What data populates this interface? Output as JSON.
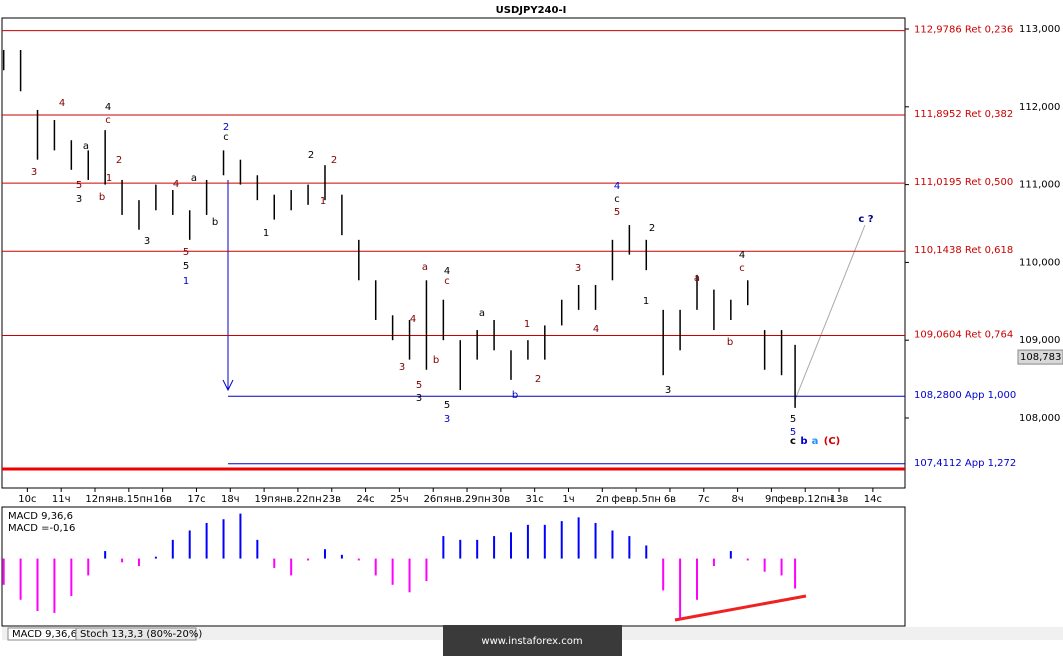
{
  "chart_data": [
    {
      "type": "hl_bar",
      "title": "USDJPY240-I",
      "x": [
        -0.7,
        -0.2,
        0.3,
        0.8,
        1.3,
        1.8,
        2.3,
        2.8,
        3.3,
        3.8,
        4.3,
        4.8,
        5.3,
        5.8,
        6.3,
        6.8,
        7.3,
        7.8,
        8.3,
        8.8,
        9.3,
        9.8,
        10.3,
        10.8,
        11.3,
        11.8,
        12.3,
        12.8,
        13.3,
        13.8,
        14.3,
        14.8,
        15.3,
        15.8,
        16.3,
        16.8,
        17.3,
        17.8,
        18.3,
        18.8,
        19.3,
        19.8,
        20.3,
        20.8,
        21.3,
        21.8,
        22.3,
        22.7
      ],
      "high": [
        112.73,
        112.73,
        111.96,
        111.83,
        111.57,
        111.44,
        111.7,
        111.06,
        110.8,
        111.0,
        110.93,
        110.67,
        111.06,
        111.44,
        111.32,
        111.12,
        110.87,
        110.93,
        111.0,
        111.25,
        110.87,
        110.29,
        109.77,
        109.32,
        109.26,
        109.77,
        109.52,
        109.0,
        109.13,
        109.26,
        108.87,
        109.0,
        109.19,
        109.52,
        109.71,
        109.71,
        110.29,
        110.48,
        110.29,
        109.39,
        109.39,
        109.84,
        109.65,
        109.52,
        109.77,
        109.13,
        109.13,
        108.94
      ],
      "low": [
        112.47,
        112.2,
        111.32,
        111.44,
        111.19,
        111.06,
        111.0,
        110.61,
        110.42,
        110.67,
        110.61,
        110.29,
        110.61,
        111.12,
        111.0,
        110.8,
        110.55,
        110.67,
        110.74,
        110.8,
        110.35,
        109.77,
        109.26,
        109.0,
        108.75,
        108.62,
        109.0,
        108.36,
        108.75,
        108.87,
        108.49,
        108.75,
        108.75,
        109.19,
        109.39,
        109.39,
        109.77,
        110.1,
        109.9,
        108.55,
        108.87,
        109.39,
        109.13,
        109.26,
        109.45,
        108.62,
        108.55,
        108.13
      ],
      "color": "#000000",
      "xlim": [
        -0.75,
        25.95
      ],
      "xticks": [
        {
          "value": 0,
          "label": "10с"
        },
        {
          "value": 1,
          "label": "11ч"
        },
        {
          "value": 2,
          "label": "12п"
        },
        {
          "value": 3,
          "label": "янв.15пн"
        },
        {
          "value": 4,
          "label": "16в"
        },
        {
          "value": 5,
          "label": "17с"
        },
        {
          "value": 6,
          "label": "18ч"
        },
        {
          "value": 7,
          "label": "19п"
        },
        {
          "value": 8,
          "label": "янв.22пн"
        },
        {
          "value": 9,
          "label": "23в"
        },
        {
          "value": 10,
          "label": "24с"
        },
        {
          "value": 11,
          "label": "25ч"
        },
        {
          "value": 12,
          "label": "26п"
        },
        {
          "value": 13,
          "label": "янв.29пн"
        },
        {
          "value": 14,
          "label": "30в"
        },
        {
          "value": 15,
          "label": "31с"
        },
        {
          "value": 16,
          "label": "1ч"
        },
        {
          "value": 17,
          "label": "2п"
        },
        {
          "value": 18,
          "label": "февр.5пн"
        },
        {
          "value": 19,
          "label": "6в"
        },
        {
          "value": 20,
          "label": "7с"
        },
        {
          "value": 21,
          "label": "8ч"
        },
        {
          "value": 22,
          "label": "9п"
        },
        {
          "value": 23,
          "label": "февр.12пн"
        },
        {
          "value": 24,
          "label": "13в"
        },
        {
          "value": 25,
          "label": "14с"
        }
      ],
      "ylim": [
        107.1,
        113.373
      ],
      "yticks": [
        {
          "value": 108,
          "label": "108,000"
        },
        {
          "value": 109,
          "label": "109,000"
        },
        {
          "value": 110,
          "label": "110,000"
        },
        {
          "value": 111,
          "label": "111,000"
        },
        {
          "value": 112,
          "label": "112,000"
        },
        {
          "value": 113,
          "label": "113,000"
        }
      ],
      "last_price": {
        "value": 108.783,
        "label": "108,783"
      },
      "levels": [
        {
          "value": 112.9786,
          "label": "112,9786 Ret 0,236",
          "color": "#cc0000"
        },
        {
          "value": 111.8952,
          "label": "111,8952 Ret 0,382",
          "color": "#cc0000"
        },
        {
          "value": 111.0195,
          "label": "111,0195 Ret 0,500",
          "color": "#cc0000"
        },
        {
          "value": 110.1438,
          "label": "110,1438 Ret 0,618",
          "color": "#cc0000"
        },
        {
          "value": 109.0604,
          "label": "109,0604 Ret 0,764",
          "color": "#cc0000"
        },
        {
          "value": 108.28,
          "label": "108,2800 App 1,000",
          "color": "#0000cc"
        },
        {
          "value": 107.4112,
          "label": "107,4112 App 1,272",
          "color": "#0000cc"
        }
      ],
      "annotations": [
        {
          "text": "4",
          "color": "#800000"
        },
        {
          "text": "4",
          "color": "#000000"
        },
        {
          "text": "c",
          "color": "#800000"
        },
        {
          "text": "2",
          "color": "#800000"
        },
        {
          "text": "a",
          "color": "#000000"
        },
        {
          "text": "1",
          "color": "#800000"
        },
        {
          "text": "3",
          "color": "#800000"
        },
        {
          "text": "5",
          "color": "#800000"
        },
        {
          "text": "3",
          "color": "#000000"
        },
        {
          "text": "b",
          "color": "#800000"
        },
        {
          "text": "4",
          "color": "#800000"
        },
        {
          "text": "a",
          "color": "#000000"
        },
        {
          "text": "3",
          "color": "#000000"
        },
        {
          "text": "5",
          "color": "#800000"
        },
        {
          "text": "5",
          "color": "#000000"
        },
        {
          "text": "1",
          "color": "#0000cc"
        },
        {
          "text": "b",
          "color": "#000000"
        },
        {
          "text": "2",
          "color": "#0000cc"
        },
        {
          "text": "c",
          "color": "#000000"
        },
        {
          "text": "1",
          "color": "#000000"
        },
        {
          "text": "2",
          "color": "#000000"
        },
        {
          "text": "2",
          "color": "#800000"
        },
        {
          "text": "1",
          "color": "#800000"
        },
        {
          "text": "a",
          "color": "#800000"
        },
        {
          "text": "4",
          "color": "#000000"
        },
        {
          "text": "c",
          "color": "#800000"
        },
        {
          "text": "4",
          "color": "#800000"
        },
        {
          "text": "3",
          "color": "#800000"
        },
        {
          "text": "b",
          "color": "#800000"
        },
        {
          "text": "5",
          "color": "#800000"
        },
        {
          "text": "3",
          "color": "#000000"
        },
        {
          "text": "5",
          "color": "#000000"
        },
        {
          "text": "3",
          "color": "#0000cc"
        },
        {
          "text": "a",
          "color": "#000000"
        },
        {
          "text": "b",
          "color": "#0000cc"
        },
        {
          "text": "1",
          "color": "#800000"
        },
        {
          "text": "2",
          "color": "#800000"
        },
        {
          "text": "3",
          "color": "#800000"
        },
        {
          "text": "4",
          "color": "#800000"
        },
        {
          "text": "4",
          "color": "#0000cc"
        },
        {
          "text": "c",
          "color": "#000000"
        },
        {
          "text": "5",
          "color": "#800000"
        },
        {
          "text": "2",
          "color": "#000000"
        },
        {
          "text": "1",
          "color": "#000000"
        },
        {
          "text": "a",
          "color": "#800000"
        },
        {
          "text": "4",
          "color": "#000000"
        },
        {
          "text": "c",
          "color": "#800000"
        },
        {
          "text": "b",
          "color": "#800000"
        },
        {
          "text": "3",
          "color": "#000000"
        },
        {
          "text": "5",
          "color": "#000000"
        },
        {
          "text": "5",
          "color": "#0000cc"
        },
        {
          "text": "c",
          "color": "#000000"
        },
        {
          "text": "b",
          "color": "#0000cc"
        },
        {
          "text": "a",
          "color": "#1e90ff"
        },
        {
          "text": "(C)",
          "color": "#cc0000"
        },
        {
          "text": "c ?",
          "color": "#000080"
        }
      ]
    },
    {
      "type": "bar",
      "series": [
        {
          "name": "MACD 9,36,6",
          "color": "#0000ff",
          "negative_color": "#ff00ff",
          "x": [
            -0.7,
            -0.2,
            0.3,
            0.8,
            1.3,
            1.8,
            2.3,
            2.8,
            3.3,
            3.8,
            4.3,
            4.8,
            5.3,
            5.8,
            6.3,
            6.8,
            7.3,
            7.8,
            8.3,
            8.8,
            9.3,
            9.8,
            10.3,
            10.8,
            11.3,
            11.8,
            12.3,
            12.8,
            13.3,
            13.8,
            14.3,
            14.8,
            15.3,
            15.8,
            16.3,
            16.8,
            17.3,
            17.8,
            18.3,
            18.8,
            19.3,
            19.8,
            20.3,
            20.8,
            21.3,
            21.8,
            22.3,
            22.7
          ],
          "values": [
            -0.14,
            -0.22,
            -0.28,
            -0.29,
            -0.2,
            -0.09,
            0.04,
            -0.02,
            -0.04,
            0.01,
            0.1,
            0.15,
            0.19,
            0.21,
            0.24,
            0.1,
            -0.05,
            -0.09,
            -0.01,
            0.05,
            0.02,
            -0.01,
            -0.09,
            -0.14,
            -0.18,
            -0.12,
            0.12,
            0.1,
            0.1,
            0.12,
            0.14,
            0.18,
            0.18,
            0.2,
            0.22,
            0.19,
            0.15,
            0.12,
            0.07,
            -0.17,
            -0.32,
            -0.22,
            -0.04,
            0.04,
            -0.01,
            -0.07,
            -0.09,
            -0.16
          ]
        }
      ],
      "current_label": "MACD =-0,16",
      "xlim": [
        -0.75,
        25.95
      ],
      "ylim": [
        -0.36,
        0.27
      ]
    }
  ],
  "tabs": [
    "MACD 9,36,6",
    "Stoch 13,3,3 (80%-20%)"
  ],
  "watermark": "www.instaforex.com"
}
